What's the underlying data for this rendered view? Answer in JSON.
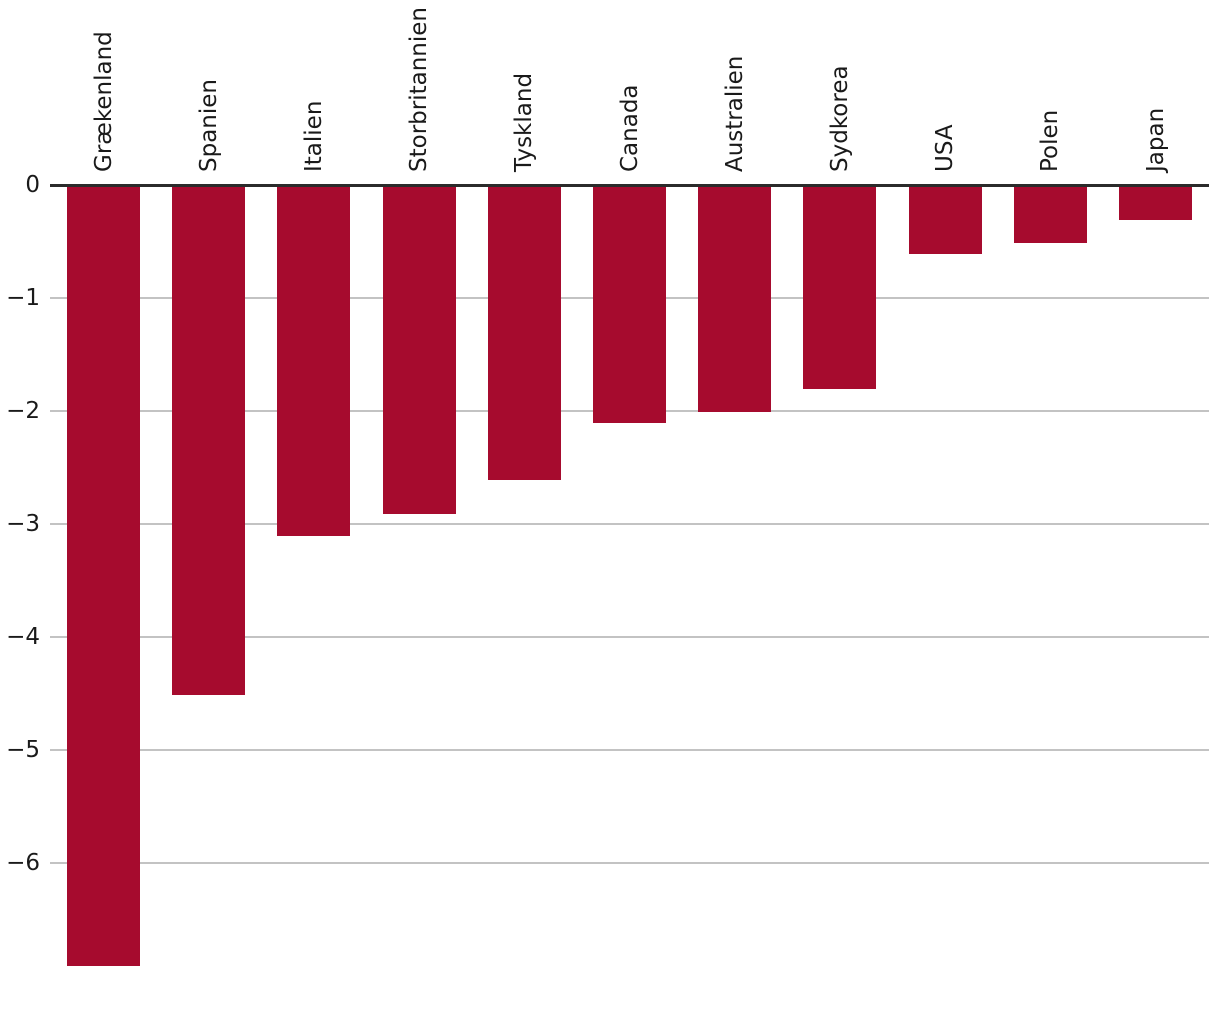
{
  "chart_data": {
    "type": "bar",
    "title": "",
    "xlabel": "",
    "ylabel": "",
    "categories": [
      "Grækenland",
      "Spanien",
      "Italien",
      "Storbritannien",
      "Tyskland",
      "Canada",
      "Australien",
      "Sydkorea",
      "USA",
      "Polen",
      "Japan"
    ],
    "values": [
      -6.9,
      -4.5,
      -3.1,
      -2.9,
      -2.6,
      -2.1,
      -2.0,
      -1.8,
      -0.6,
      -0.5,
      -0.3
    ],
    "yticks": [
      0,
      -1,
      -2,
      -3,
      -4,
      -5,
      -6
    ],
    "ytick_labels": [
      "0",
      "−1",
      "−2",
      "−3",
      "−4",
      "−5",
      "−6"
    ],
    "ylim": [
      -7,
      0
    ],
    "grid": "horizontal",
    "legend": "none",
    "bar_labels_rotation_deg": 90,
    "colors": {
      "bar": "#A60B2E",
      "zero_axis": "#2B2B2B",
      "gridline": "#C3C3C3",
      "text": "#1A1A1A",
      "background": "#FFFFFF"
    }
  }
}
